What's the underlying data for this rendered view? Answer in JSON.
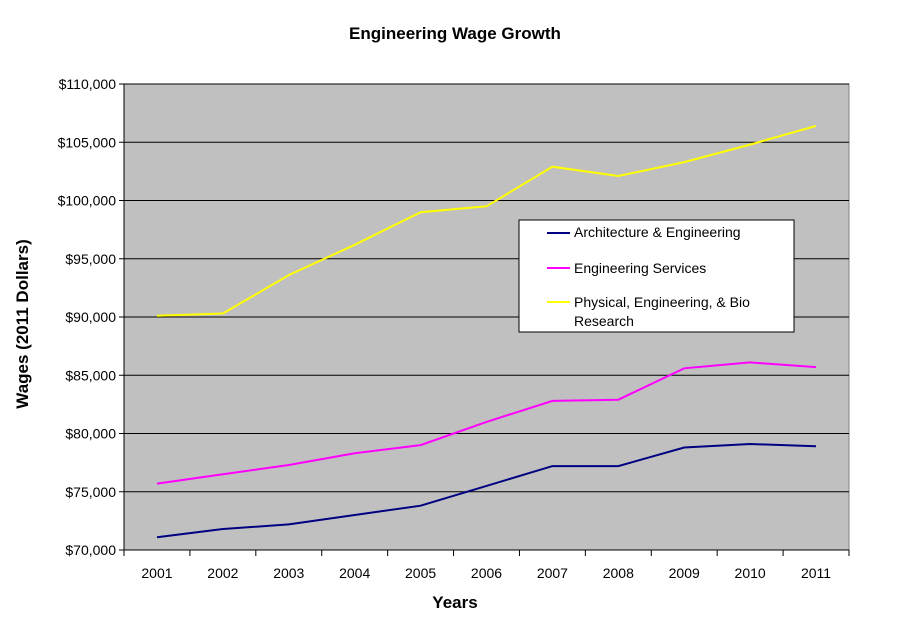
{
  "chart_data": {
    "type": "line",
    "title": "Engineering Wage Growth",
    "xlabel": "Years",
    "ylabel": "Wages (2011 Dollars)",
    "categories": [
      "2001",
      "2002",
      "2003",
      "2004",
      "2005",
      "2006",
      "2007",
      "2008",
      "2009",
      "2010",
      "2011"
    ],
    "ylim": [
      70000,
      110000
    ],
    "yticks": [
      70000,
      75000,
      80000,
      85000,
      90000,
      95000,
      100000,
      105000,
      110000
    ],
    "ytick_labels": [
      "$70,000",
      "$75,000",
      "$80,000",
      "$85,000",
      "$90,000",
      "$95,000",
      "$100,000",
      "$105,000",
      "$110,000"
    ],
    "grid": true,
    "legend_position": "right-middle",
    "series": [
      {
        "name": "Architecture & Engineering",
        "color": "#000080",
        "values": [
          71100,
          71800,
          72200,
          73000,
          73800,
          75500,
          77200,
          77200,
          78800,
          79100,
          78900
        ]
      },
      {
        "name": "Engineering Services",
        "color": "#ff00ff",
        "values": [
          75700,
          76500,
          77300,
          78300,
          79000,
          81000,
          82800,
          82900,
          85600,
          86100,
          85700
        ]
      },
      {
        "name": "Physical, Engineering, & Bio Research",
        "legend_lines": [
          "Physical, Engineering, & Bio",
          "Research"
        ],
        "color": "#ffff00",
        "values": [
          90100,
          90300,
          93600,
          96200,
          99000,
          99500,
          102900,
          102100,
          103300,
          104800,
          106400
        ]
      }
    ],
    "plot_background": "#c0c0c0"
  }
}
